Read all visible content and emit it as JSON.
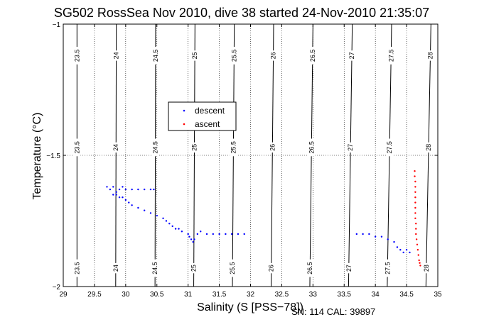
{
  "chart_data": {
    "type": "scatter",
    "title": "SG502 RossSea Nov 2010, dive 38 started 24-Nov-2010 21:35:07",
    "xlabel": "Salinity (S [PSS−78])",
    "ylabel": "Temperature (°C)",
    "xlim": [
      29,
      35
    ],
    "ylim": [
      -2,
      -1
    ],
    "xticks": [
      "29",
      "29.5",
      "30",
      "30.5",
      "31",
      "31.5",
      "32",
      "32.5",
      "33",
      "33.5",
      "34",
      "34.5",
      "35"
    ],
    "yticks": [
      "-1",
      "-1.5",
      "-2"
    ],
    "grid": "dotted",
    "legend_position": "upper-center",
    "note": "SN: 114  CAL: 39897",
    "density_contours": [
      {
        "label": "23.5",
        "x_top": 29.22,
        "x_bottom": 29.22
      },
      {
        "label": "24",
        "x_top": 29.85,
        "x_bottom": 29.84
      },
      {
        "label": "24.5",
        "x_top": 30.48,
        "x_bottom": 30.47
      },
      {
        "label": "25",
        "x_top": 31.11,
        "x_bottom": 31.09
      },
      {
        "label": "25.5",
        "x_top": 31.74,
        "x_bottom": 31.71
      },
      {
        "label": "26",
        "x_top": 32.37,
        "x_bottom": 32.33
      },
      {
        "label": "26.5",
        "x_top": 33.0,
        "x_bottom": 32.95
      },
      {
        "label": "27",
        "x_top": 33.63,
        "x_bottom": 33.57
      },
      {
        "label": "27.5",
        "x_top": 34.26,
        "x_bottom": 34.19
      },
      {
        "label": "28",
        "x_top": 34.89,
        "x_bottom": 34.81
      }
    ],
    "series": [
      {
        "name": "descent",
        "color": "#0000ff",
        "points": [
          [
            29.7,
            -1.62
          ],
          [
            29.75,
            -1.63
          ],
          [
            29.8,
            -1.62
          ],
          [
            29.85,
            -1.64
          ],
          [
            29.9,
            -1.63
          ],
          [
            29.95,
            -1.62
          ],
          [
            30.0,
            -1.63
          ],
          [
            30.1,
            -1.63
          ],
          [
            30.2,
            -1.63
          ],
          [
            30.3,
            -1.63
          ],
          [
            30.4,
            -1.63
          ],
          [
            30.45,
            -1.63
          ],
          [
            29.8,
            -1.65
          ],
          [
            29.85,
            -1.65
          ],
          [
            29.9,
            -1.66
          ],
          [
            29.95,
            -1.66
          ],
          [
            30.0,
            -1.67
          ],
          [
            30.05,
            -1.68
          ],
          [
            30.1,
            -1.69
          ],
          [
            30.2,
            -1.7
          ],
          [
            30.3,
            -1.71
          ],
          [
            30.4,
            -1.72
          ],
          [
            30.5,
            -1.73
          ],
          [
            30.6,
            -1.74
          ],
          [
            30.65,
            -1.75
          ],
          [
            30.7,
            -1.76
          ],
          [
            30.75,
            -1.77
          ],
          [
            30.8,
            -1.78
          ],
          [
            30.85,
            -1.78
          ],
          [
            30.9,
            -1.79
          ],
          [
            31.0,
            -1.8
          ],
          [
            31.02,
            -1.81
          ],
          [
            31.05,
            -1.82
          ],
          [
            31.08,
            -1.83
          ],
          [
            31.1,
            -1.82
          ],
          [
            31.15,
            -1.8
          ],
          [
            31.2,
            -1.79
          ],
          [
            31.3,
            -1.8
          ],
          [
            31.4,
            -1.8
          ],
          [
            31.5,
            -1.8
          ],
          [
            31.6,
            -1.8
          ],
          [
            31.7,
            -1.8
          ],
          [
            31.8,
            -1.8
          ],
          [
            31.9,
            -1.8
          ],
          [
            33.7,
            -1.8
          ],
          [
            33.8,
            -1.8
          ],
          [
            33.9,
            -1.8
          ],
          [
            34.0,
            -1.81
          ],
          [
            34.1,
            -1.81
          ],
          [
            34.2,
            -1.82
          ],
          [
            34.3,
            -1.83
          ],
          [
            34.35,
            -1.85
          ],
          [
            34.4,
            -1.86
          ],
          [
            34.45,
            -1.87
          ],
          [
            34.5,
            -1.86
          ],
          [
            34.55,
            -1.87
          ]
        ]
      },
      {
        "name": "ascent",
        "color": "#ff0000",
        "points": [
          [
            34.63,
            -1.56
          ],
          [
            34.63,
            -1.58
          ],
          [
            34.64,
            -1.6
          ],
          [
            34.64,
            -1.62
          ],
          [
            34.64,
            -1.64
          ],
          [
            34.64,
            -1.66
          ],
          [
            34.64,
            -1.68
          ],
          [
            34.64,
            -1.7
          ],
          [
            34.64,
            -1.72
          ],
          [
            34.64,
            -1.74
          ],
          [
            34.65,
            -1.76
          ],
          [
            34.65,
            -1.78
          ],
          [
            34.65,
            -1.8
          ],
          [
            34.66,
            -1.82
          ],
          [
            34.67,
            -1.84
          ],
          [
            34.68,
            -1.86
          ],
          [
            34.69,
            -1.88
          ],
          [
            34.7,
            -1.9
          ],
          [
            34.71,
            -1.91
          ],
          [
            34.72,
            -1.92
          ]
        ]
      }
    ]
  }
}
